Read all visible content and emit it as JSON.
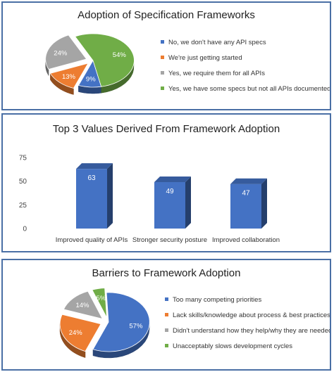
{
  "chart_data": [
    {
      "type": "pie",
      "title": "Adoption of Specification Frameworks",
      "slices": [
        {
          "label": "No, we don't have any API specs",
          "value": 9,
          "display": "9%",
          "color": "#4472c4"
        },
        {
          "label": "We're just getting started",
          "value": 13,
          "display": "13%",
          "color": "#ed7d31"
        },
        {
          "label": "Yes, we require them for all APIs",
          "value": 24,
          "display": "24%",
          "color": "#a5a5a5"
        },
        {
          "label": "Yes, we have some specs but not all APIs documented",
          "value": 54,
          "display": "54%",
          "color": "#70ad47"
        }
      ]
    },
    {
      "type": "bar",
      "title": "Top 3 Values Derived From Framework Adoption",
      "categories": [
        "Improved quality of APIs",
        "Stronger security posture",
        "Improved collaboration"
      ],
      "values": [
        63,
        49,
        47
      ],
      "yticks": [
        0,
        25,
        50,
        75
      ],
      "ylim": [
        0,
        75
      ],
      "color": "#4472c4"
    },
    {
      "type": "pie",
      "title": "Barriers to Framework Adoption",
      "slices": [
        {
          "label": "Too many competing priorities",
          "value": 57,
          "display": "57%",
          "color": "#4472c4"
        },
        {
          "label": "Lack skills/knowledge about process & best practices",
          "value": 24,
          "display": "24%",
          "color": "#ed7d31"
        },
        {
          "label": "Didn't understand how they help/why they are needed",
          "value": 14,
          "display": "14%",
          "color": "#a5a5a5"
        },
        {
          "label": "Unacceptably slows development cycles",
          "value": 5,
          "display": "5%",
          "color": "#70ad47"
        }
      ]
    }
  ]
}
